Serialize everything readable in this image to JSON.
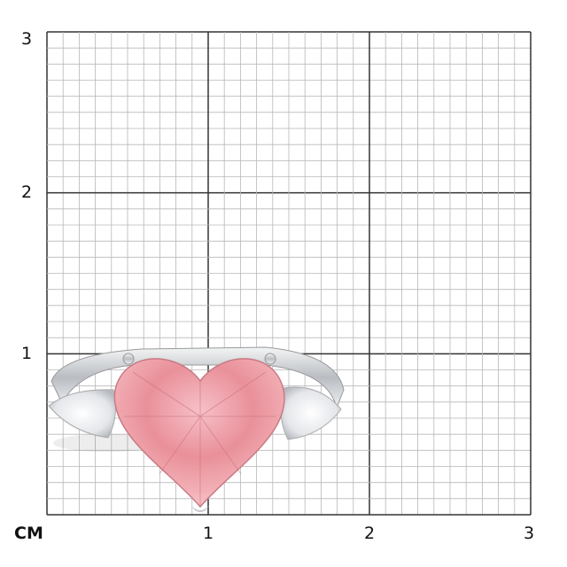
{
  "axis": {
    "unit": "CM",
    "y_labels": [
      "3",
      "2",
      "1"
    ],
    "x_labels": [
      "1",
      "2",
      "3"
    ],
    "range_cm": [
      0,
      3
    ],
    "minor_divisions_per_cm": 10
  },
  "colors": {
    "grid_minor": "#b8b8b8",
    "grid_major": "#333333",
    "gem_pink": "#f0a8b0",
    "metal": "#d9dcdf"
  },
  "product": {
    "type": "heart-shaped pink gemstone ring with pear side stones"
  }
}
